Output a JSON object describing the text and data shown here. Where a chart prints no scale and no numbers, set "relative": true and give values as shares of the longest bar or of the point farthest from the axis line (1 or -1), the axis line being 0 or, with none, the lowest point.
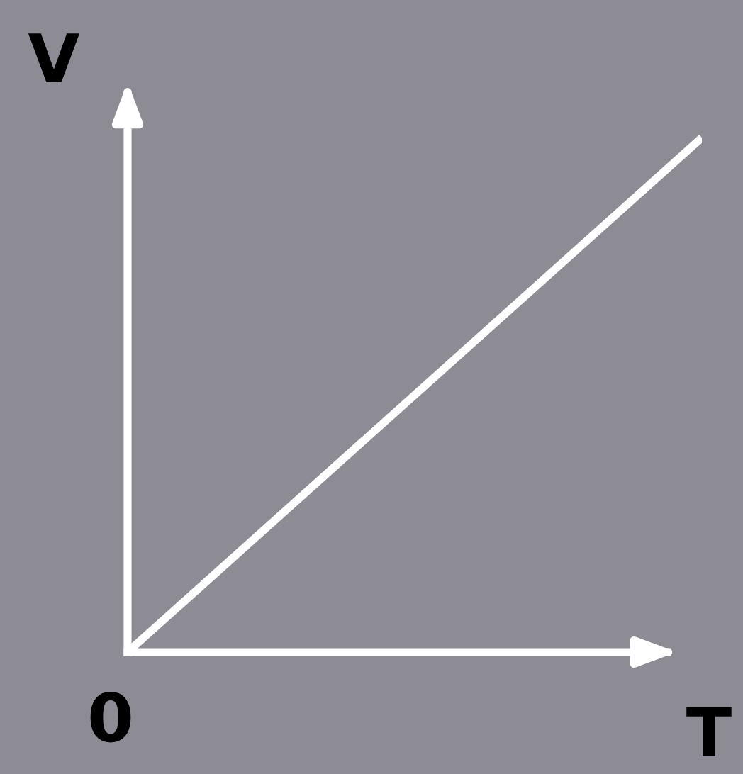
{
  "chart_data": {
    "type": "line",
    "xlabel": "T",
    "ylabel": "V",
    "relative": true,
    "categories": [
      null,
      null
    ],
    "series": [
      {
        "color": "#ffffff",
        "values": [
          0,
          1
        ]
      }
    ],
    "annotations": [
      "0"
    ],
    "grid": false,
    "legend": false
  }
}
